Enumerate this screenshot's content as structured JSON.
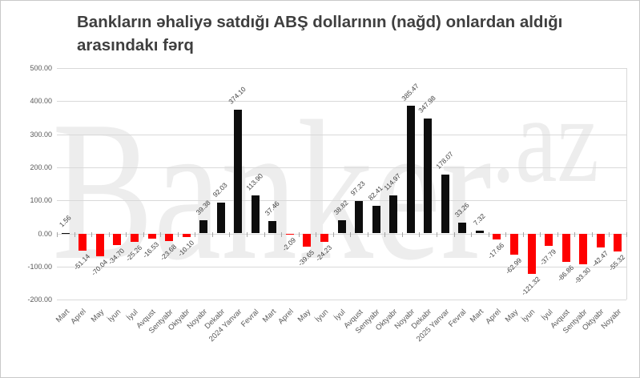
{
  "title": "Bankların əhaliyə satdığı ABŞ dollarının (nağd) onlardan aldığı arasındakı fərq",
  "watermark": {
    "brand": "Banker",
    "suffix": ".az"
  },
  "colors": {
    "positive_bar": "#0d0d0d",
    "negative_bar": "#fe0000",
    "gridline": "#d9d9d9",
    "tick": "#a6a6a6",
    "title_text": "#3f3f3f",
    "axis_text": "#595959",
    "value_label_text": "#404040",
    "watermark_text": "#ededed",
    "background": "#ffffff",
    "border": "#c9c9c9"
  },
  "chart_data": {
    "type": "bar",
    "title": "Bankların əhaliyə satdığı ABŞ dollarının (nağd) onlardan aldığı arasındakı fərq",
    "categories": [
      "Mart",
      "Aprel",
      "May",
      "İyun",
      "İyul",
      "Avqust",
      "Sentyabr",
      "Oktyabr",
      "Noyabr",
      "Dekabr",
      "2024 Yanvar",
      "Fevral",
      "Mart",
      "Aprel",
      "May",
      "İyun",
      "İyul",
      "Avqust",
      "Sentyabr",
      "Oktyabr",
      "Noyabr",
      "Dekabr",
      "2025 Yanvar",
      "Fevral",
      "Mart",
      "Aprel",
      "May",
      "İyun",
      "İyul",
      "Avqust",
      "Sentyabr",
      "Oktyabr",
      "Noyabr"
    ],
    "values": [
      1.56,
      -51.14,
      -70.04,
      -34.7,
      -25.26,
      -16.53,
      -23.68,
      -10.1,
      39.38,
      92.03,
      374.1,
      113.9,
      37.46,
      -2.09,
      -39.65,
      -24.23,
      38.82,
      97.23,
      82.41,
      114.97,
      385.47,
      347.98,
      178.07,
      33.26,
      7.32,
      -17.66,
      -62.99,
      -121.32,
      -37.79,
      -86.86,
      -93.3,
      -42.47,
      -55.32
    ],
    "value_label_decimals": 2,
    "ylim": [
      -200,
      500
    ],
    "ytick_step": 100,
    "ytick_labels": [
      "500.00",
      "400.00",
      "300.00",
      "200.00",
      "100.00",
      "0.00",
      "-100.00",
      "-200.00"
    ],
    "grid": true,
    "legend": false,
    "xlabel": "",
    "ylabel": "",
    "bar_colors": {
      "positive": "#0d0d0d",
      "negative": "#fe0000"
    }
  }
}
